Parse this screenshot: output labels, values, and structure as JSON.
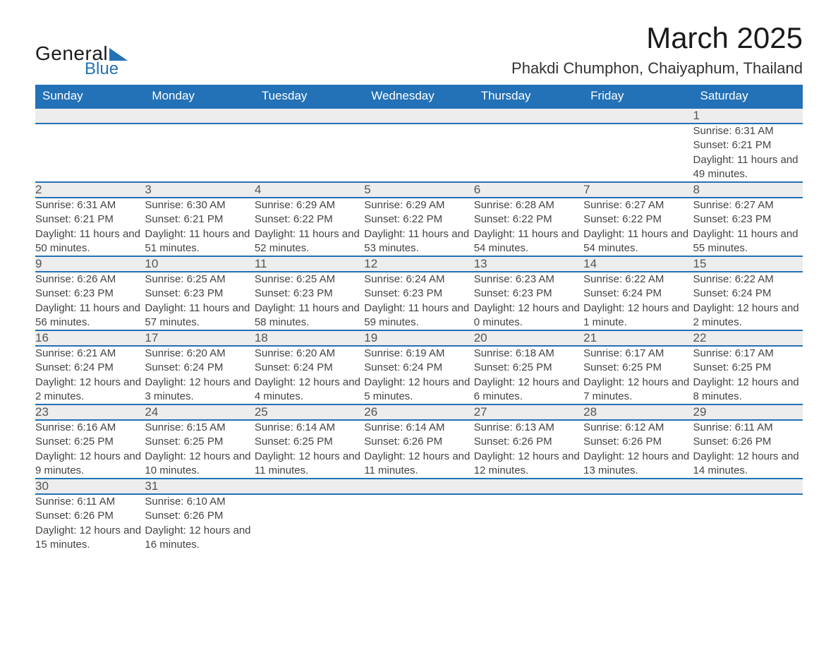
{
  "brand": {
    "general": "General",
    "blue": "Blue",
    "triangle_color": "#2371b6"
  },
  "title": "March 2025",
  "location": "Phakdi Chumphon, Chaiyaphum, Thailand",
  "colors": {
    "header_bg": "#2371b6",
    "header_text": "#ffffff",
    "daynum_bg": "#ededed",
    "row_divider": "#2371b6",
    "body_text": "#444444",
    "title_text": "#1a1a1a",
    "page_bg": "#ffffff"
  },
  "typography": {
    "title_fontsize": 42,
    "location_fontsize": 22,
    "dayheader_fontsize": 17,
    "daynum_fontsize": 17,
    "detail_fontsize": 15,
    "font_family": "Arial"
  },
  "day_headers": [
    "Sunday",
    "Monday",
    "Tuesday",
    "Wednesday",
    "Thursday",
    "Friday",
    "Saturday"
  ],
  "weeks": [
    [
      null,
      null,
      null,
      null,
      null,
      null,
      {
        "n": "1",
        "sunrise": "Sunrise: 6:31 AM",
        "sunset": "Sunset: 6:21 PM",
        "daylight": "Daylight: 11 hours and 49 minutes."
      }
    ],
    [
      {
        "n": "2",
        "sunrise": "Sunrise: 6:31 AM",
        "sunset": "Sunset: 6:21 PM",
        "daylight": "Daylight: 11 hours and 50 minutes."
      },
      {
        "n": "3",
        "sunrise": "Sunrise: 6:30 AM",
        "sunset": "Sunset: 6:21 PM",
        "daylight": "Daylight: 11 hours and 51 minutes."
      },
      {
        "n": "4",
        "sunrise": "Sunrise: 6:29 AM",
        "sunset": "Sunset: 6:22 PM",
        "daylight": "Daylight: 11 hours and 52 minutes."
      },
      {
        "n": "5",
        "sunrise": "Sunrise: 6:29 AM",
        "sunset": "Sunset: 6:22 PM",
        "daylight": "Daylight: 11 hours and 53 minutes."
      },
      {
        "n": "6",
        "sunrise": "Sunrise: 6:28 AM",
        "sunset": "Sunset: 6:22 PM",
        "daylight": "Daylight: 11 hours and 54 minutes."
      },
      {
        "n": "7",
        "sunrise": "Sunrise: 6:27 AM",
        "sunset": "Sunset: 6:22 PM",
        "daylight": "Daylight: 11 hours and 54 minutes."
      },
      {
        "n": "8",
        "sunrise": "Sunrise: 6:27 AM",
        "sunset": "Sunset: 6:23 PM",
        "daylight": "Daylight: 11 hours and 55 minutes."
      }
    ],
    [
      {
        "n": "9",
        "sunrise": "Sunrise: 6:26 AM",
        "sunset": "Sunset: 6:23 PM",
        "daylight": "Daylight: 11 hours and 56 minutes."
      },
      {
        "n": "10",
        "sunrise": "Sunrise: 6:25 AM",
        "sunset": "Sunset: 6:23 PM",
        "daylight": "Daylight: 11 hours and 57 minutes."
      },
      {
        "n": "11",
        "sunrise": "Sunrise: 6:25 AM",
        "sunset": "Sunset: 6:23 PM",
        "daylight": "Daylight: 11 hours and 58 minutes."
      },
      {
        "n": "12",
        "sunrise": "Sunrise: 6:24 AM",
        "sunset": "Sunset: 6:23 PM",
        "daylight": "Daylight: 11 hours and 59 minutes."
      },
      {
        "n": "13",
        "sunrise": "Sunrise: 6:23 AM",
        "sunset": "Sunset: 6:23 PM",
        "daylight": "Daylight: 12 hours and 0 minutes."
      },
      {
        "n": "14",
        "sunrise": "Sunrise: 6:22 AM",
        "sunset": "Sunset: 6:24 PM",
        "daylight": "Daylight: 12 hours and 1 minute."
      },
      {
        "n": "15",
        "sunrise": "Sunrise: 6:22 AM",
        "sunset": "Sunset: 6:24 PM",
        "daylight": "Daylight: 12 hours and 2 minutes."
      }
    ],
    [
      {
        "n": "16",
        "sunrise": "Sunrise: 6:21 AM",
        "sunset": "Sunset: 6:24 PM",
        "daylight": "Daylight: 12 hours and 2 minutes."
      },
      {
        "n": "17",
        "sunrise": "Sunrise: 6:20 AM",
        "sunset": "Sunset: 6:24 PM",
        "daylight": "Daylight: 12 hours and 3 minutes."
      },
      {
        "n": "18",
        "sunrise": "Sunrise: 6:20 AM",
        "sunset": "Sunset: 6:24 PM",
        "daylight": "Daylight: 12 hours and 4 minutes."
      },
      {
        "n": "19",
        "sunrise": "Sunrise: 6:19 AM",
        "sunset": "Sunset: 6:24 PM",
        "daylight": "Daylight: 12 hours and 5 minutes."
      },
      {
        "n": "20",
        "sunrise": "Sunrise: 6:18 AM",
        "sunset": "Sunset: 6:25 PM",
        "daylight": "Daylight: 12 hours and 6 minutes."
      },
      {
        "n": "21",
        "sunrise": "Sunrise: 6:17 AM",
        "sunset": "Sunset: 6:25 PM",
        "daylight": "Daylight: 12 hours and 7 minutes."
      },
      {
        "n": "22",
        "sunrise": "Sunrise: 6:17 AM",
        "sunset": "Sunset: 6:25 PM",
        "daylight": "Daylight: 12 hours and 8 minutes."
      }
    ],
    [
      {
        "n": "23",
        "sunrise": "Sunrise: 6:16 AM",
        "sunset": "Sunset: 6:25 PM",
        "daylight": "Daylight: 12 hours and 9 minutes."
      },
      {
        "n": "24",
        "sunrise": "Sunrise: 6:15 AM",
        "sunset": "Sunset: 6:25 PM",
        "daylight": "Daylight: 12 hours and 10 minutes."
      },
      {
        "n": "25",
        "sunrise": "Sunrise: 6:14 AM",
        "sunset": "Sunset: 6:25 PM",
        "daylight": "Daylight: 12 hours and 11 minutes."
      },
      {
        "n": "26",
        "sunrise": "Sunrise: 6:14 AM",
        "sunset": "Sunset: 6:26 PM",
        "daylight": "Daylight: 12 hours and 11 minutes."
      },
      {
        "n": "27",
        "sunrise": "Sunrise: 6:13 AM",
        "sunset": "Sunset: 6:26 PM",
        "daylight": "Daylight: 12 hours and 12 minutes."
      },
      {
        "n": "28",
        "sunrise": "Sunrise: 6:12 AM",
        "sunset": "Sunset: 6:26 PM",
        "daylight": "Daylight: 12 hours and 13 minutes."
      },
      {
        "n": "29",
        "sunrise": "Sunrise: 6:11 AM",
        "sunset": "Sunset: 6:26 PM",
        "daylight": "Daylight: 12 hours and 14 minutes."
      }
    ],
    [
      {
        "n": "30",
        "sunrise": "Sunrise: 6:11 AM",
        "sunset": "Sunset: 6:26 PM",
        "daylight": "Daylight: 12 hours and 15 minutes."
      },
      {
        "n": "31",
        "sunrise": "Sunrise: 6:10 AM",
        "sunset": "Sunset: 6:26 PM",
        "daylight": "Daylight: 12 hours and 16 minutes."
      },
      null,
      null,
      null,
      null,
      null
    ]
  ]
}
